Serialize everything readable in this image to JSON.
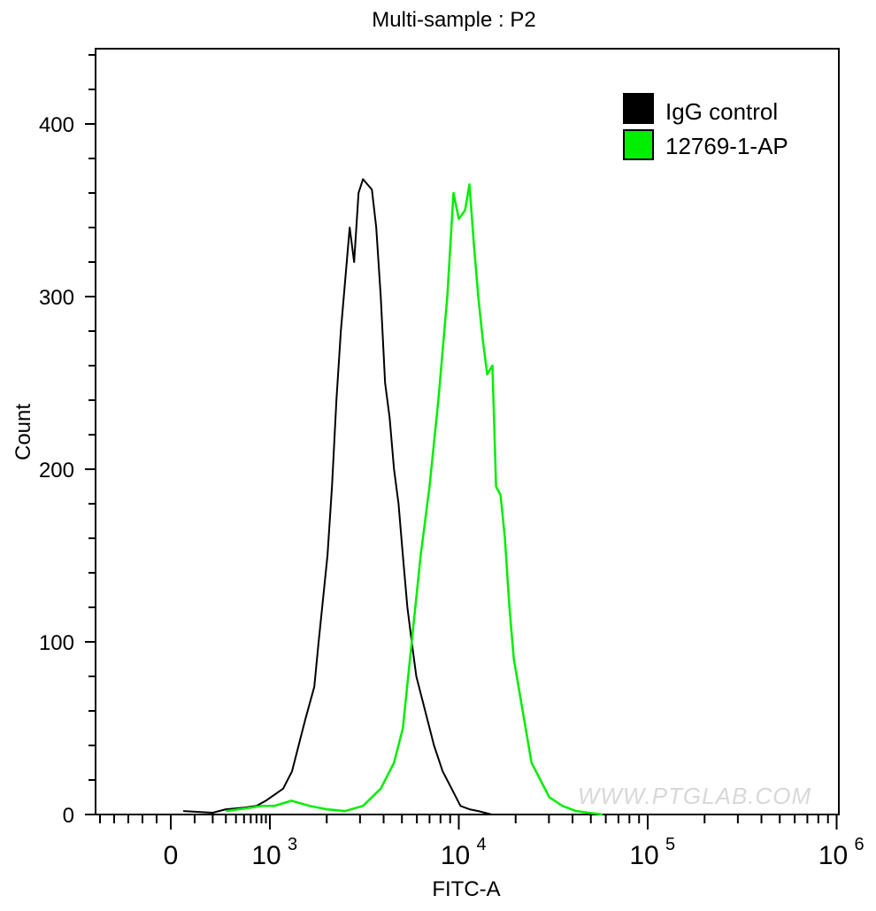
{
  "chart_data": {
    "type": "line",
    "title": "Multi-sample : P2",
    "xlabel": "FITC-A",
    "ylabel": "Count",
    "x_scale": "biexponential (log above 10^3)",
    "xlim": [
      -300,
      1000000
    ],
    "ylim": [
      0,
      440
    ],
    "x_ticks": [
      {
        "value": 0,
        "label": "0",
        "sup": ""
      },
      {
        "value": 1000,
        "label": "10",
        "sup": "3"
      },
      {
        "value": 10000,
        "label": "10",
        "sup": "4"
      },
      {
        "value": 100000,
        "label": "10",
        "sup": "5"
      },
      {
        "value": 1000000,
        "label": "10",
        "sup": "6"
      }
    ],
    "y_ticks": [
      "0",
      "100",
      "200",
      "300",
      "400"
    ],
    "y_tick_values": [
      0,
      100,
      200,
      300,
      400
    ],
    "grid": false,
    "legend_position": "top-right",
    "watermark": "WWW.PTGLAB.COM",
    "series": [
      {
        "name": "IgG control",
        "color": "#000000",
        "x": [
          50,
          200,
          300,
          500,
          700,
          900,
          1175,
          1310,
          1540,
          1718,
          1812,
          2019,
          2132,
          2250,
          2375,
          2646,
          2793,
          2946,
          3110,
          3467,
          3656,
          3862,
          4074,
          4302,
          4539,
          4797,
          5058,
          5346,
          5636,
          5957,
          6637,
          7391,
          8222,
          9162,
          10210,
          11380,
          12680,
          14920
        ],
        "y": [
          2,
          1,
          3,
          4,
          5,
          8,
          15,
          25,
          55,
          74,
          100,
          150,
          190,
          240,
          280,
          340,
          320,
          360,
          368,
          362,
          340,
          300,
          250,
          230,
          200,
          180,
          150,
          120,
          100,
          80,
          60,
          40,
          25,
          15,
          5,
          3,
          2,
          0
        ]
      },
      {
        "name": "12769-1-AP",
        "color": "#00ee00",
        "x": [
          300,
          600,
          800,
          1054,
          1300,
          1626,
          2000,
          2506,
          3110,
          3862,
          4539,
          5058,
          5636,
          6281,
          6998,
          7798,
          8690,
          9376,
          10000,
          10790,
          11380,
          12020,
          12680,
          13400,
          14130,
          15070,
          15740,
          16630,
          17540,
          18530,
          19550,
          21780,
          24270,
          27040,
          30130,
          35400,
          41690,
          57630
        ],
        "y": [
          2,
          4,
          5,
          5,
          8,
          5,
          3,
          2,
          5,
          15,
          30,
          50,
          100,
          150,
          190,
          240,
          300,
          360,
          345,
          350,
          365,
          330,
          300,
          275,
          255,
          260,
          190,
          185,
          160,
          120,
          90,
          60,
          30,
          20,
          10,
          5,
          2,
          0
        ]
      }
    ]
  }
}
